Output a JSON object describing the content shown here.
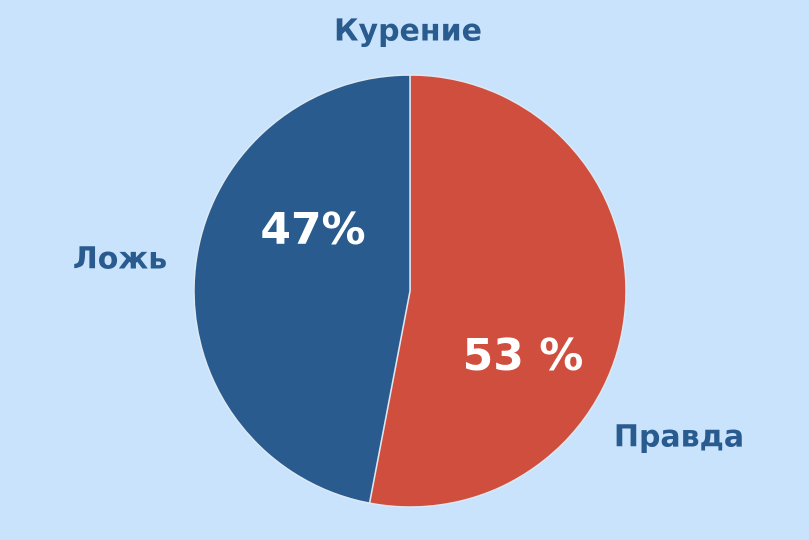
{
  "chart_data": {
    "type": "pie",
    "title": "Курение",
    "categories": [
      "Правда",
      "Ложь"
    ],
    "values": [
      53,
      47
    ],
    "value_labels": [
      "53 %",
      "47%"
    ],
    "colors": [
      "#d04e3e",
      "#2a5b8f"
    ]
  }
}
